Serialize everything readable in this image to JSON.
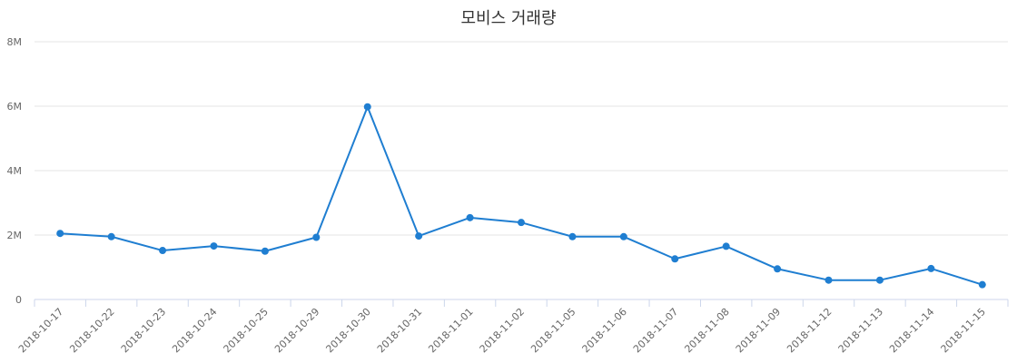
{
  "chart_data": {
    "type": "line",
    "title": "모비스 거래량",
    "xlabel": "",
    "ylabel": "",
    "categories": [
      "2018-10-17",
      "2018-10-22",
      "2018-10-23",
      "2018-10-24",
      "2018-10-25",
      "2018-10-29",
      "2018-10-30",
      "2018-10-31",
      "2018-11-01",
      "2018-11-02",
      "2018-11-05",
      "2018-11-06",
      "2018-11-07",
      "2018-11-08",
      "2018-11-09",
      "2018-11-12",
      "2018-11-13",
      "2018-11-14",
      "2018-11-15"
    ],
    "series": [
      {
        "values": [
          2050000,
          1950000,
          1520000,
          1660000,
          1500000,
          1930000,
          5980000,
          1970000,
          2540000,
          2390000,
          1950000,
          1950000,
          1260000,
          1650000,
          950000,
          600000,
          600000,
          960000,
          460000
        ],
        "color": "#1f7ed1"
      }
    ],
    "ylim": [
      0,
      8000000
    ],
    "yticks": [
      {
        "value": 0,
        "label": "0"
      },
      {
        "value": 2000000,
        "label": "2M"
      },
      {
        "value": 4000000,
        "label": "4M"
      },
      {
        "value": 6000000,
        "label": "6M"
      },
      {
        "value": 8000000,
        "label": "8M"
      }
    ],
    "grid": true,
    "legend": "none",
    "colors": {
      "line": "#1f7ed1",
      "grid": "#e6e6e6",
      "axis": "#ccd6eb"
    }
  }
}
